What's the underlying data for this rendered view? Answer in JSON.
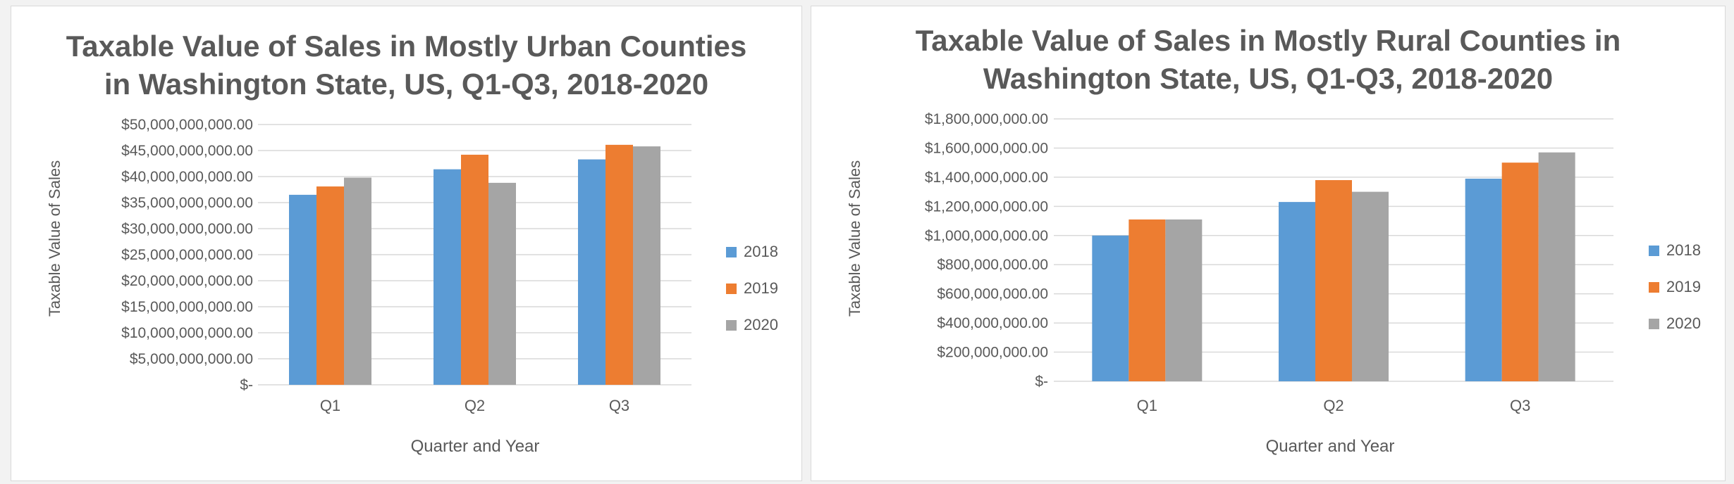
{
  "chart_data": [
    {
      "type": "bar",
      "title": [
        "Taxable Value of Sales in Mostly Urban Counties",
        "in Washington State, US, Q1-Q3, 2018-2020"
      ],
      "xlabel": "Quarter and Year",
      "ylabel": "Taxable Value of Sales",
      "categories": [
        "Q1",
        "Q2",
        "Q3"
      ],
      "series": [
        {
          "name": "2018",
          "color": "#5b9bd5",
          "values": [
            36500000000,
            41400000000,
            43300000000
          ]
        },
        {
          "name": "2019",
          "color": "#ed7d31",
          "values": [
            38100000000,
            44200000000,
            46100000000
          ]
        },
        {
          "name": "2020",
          "color": "#a5a5a5",
          "values": [
            39800000000,
            38800000000,
            45800000000
          ]
        }
      ],
      "ylim": [
        0,
        50000000000
      ],
      "yticks": [
        "$-",
        "$5,000,000,000.00",
        "$10,000,000,000.00",
        "$15,000,000,000.00",
        "$20,000,000,000.00",
        "$25,000,000,000.00",
        "$30,000,000,000.00",
        "$35,000,000,000.00",
        "$40,000,000,000.00",
        "$45,000,000,000.00",
        "$50,000,000,000.00"
      ],
      "grid": true,
      "legend": "right"
    },
    {
      "type": "bar",
      "title": [
        "Taxable Value of Sales in Mostly Rural Counties in",
        "Washington State, US, Q1-Q3, 2018-2020"
      ],
      "xlabel": "Quarter and Year",
      "ylabel": "Taxable Value of Sales",
      "categories": [
        "Q1",
        "Q2",
        "Q3"
      ],
      "series": [
        {
          "name": "2018",
          "color": "#5b9bd5",
          "values": [
            1000000000,
            1230000000,
            1390000000
          ]
        },
        {
          "name": "2019",
          "color": "#ed7d31",
          "values": [
            1110000000,
            1380000000,
            1500000000
          ]
        },
        {
          "name": "2020",
          "color": "#a5a5a5",
          "values": [
            1110000000,
            1300000000,
            1570000000
          ]
        }
      ],
      "ylim": [
        0,
        1800000000
      ],
      "yticks": [
        "$-",
        "$200,000,000.00",
        "$400,000,000.00",
        "$600,000,000.00",
        "$800,000,000.00",
        "$1,000,000,000.00",
        "$1,200,000,000.00",
        "$1,400,000,000.00",
        "$1,600,000,000.00",
        "$1,800,000,000.00"
      ],
      "grid": true,
      "legend": "right"
    }
  ]
}
